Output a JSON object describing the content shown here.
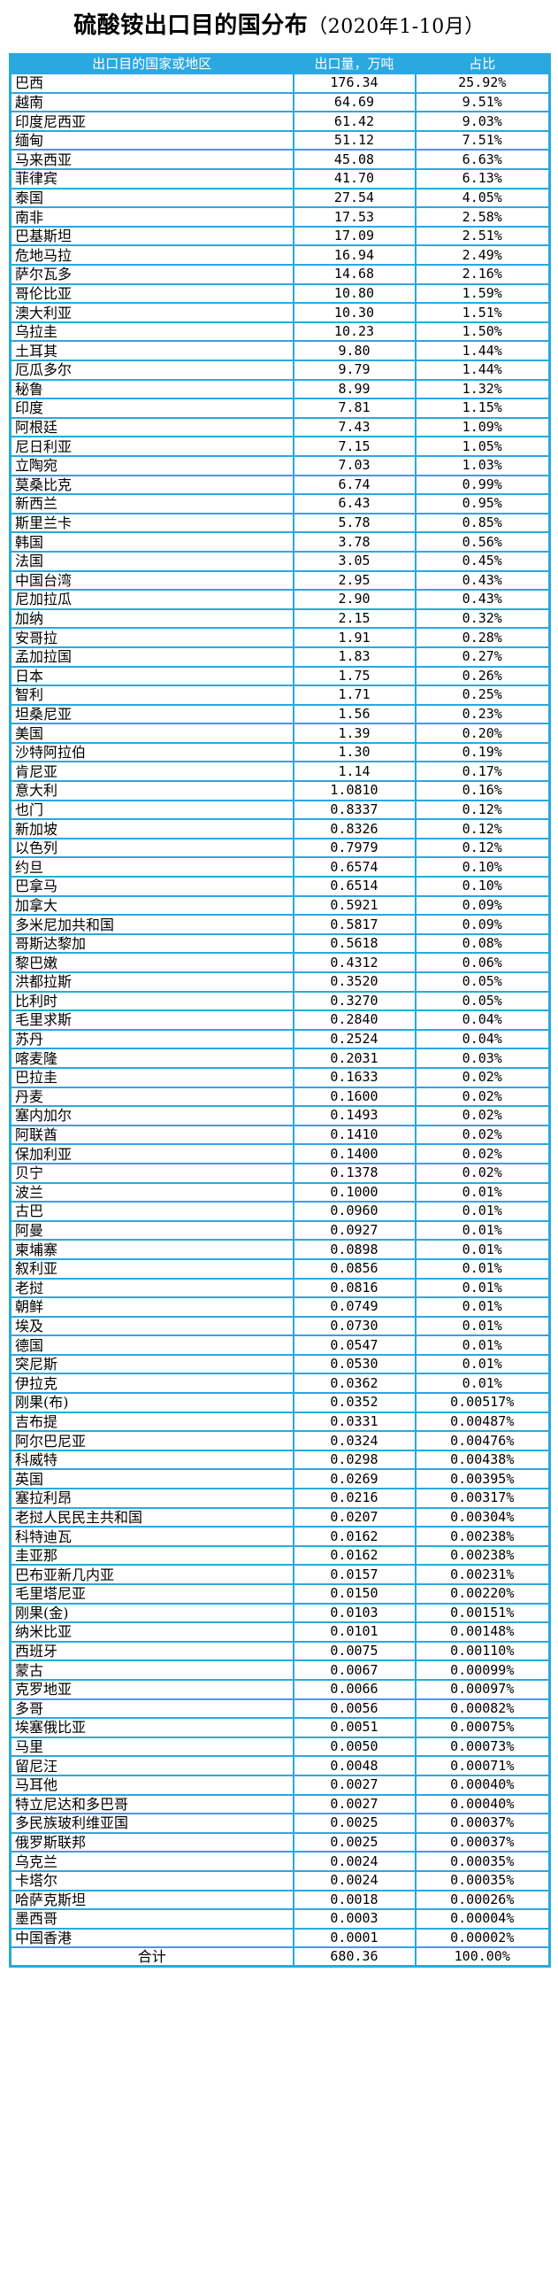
{
  "title": {
    "main": "硫酸铵出口目的国分布",
    "period": "（2020年1-10月）"
  },
  "columns": [
    "出口目的国家或地区",
    "出口量，万吨",
    "占比"
  ],
  "rows": [
    [
      "巴西",
      "176.34",
      "25.92%"
    ],
    [
      "越南",
      "64.69",
      "9.51%"
    ],
    [
      "印度尼西亚",
      "61.42",
      "9.03%"
    ],
    [
      "缅甸",
      "51.12",
      "7.51%"
    ],
    [
      "马来西亚",
      "45.08",
      "6.63%"
    ],
    [
      "菲律宾",
      "41.70",
      "6.13%"
    ],
    [
      "泰国",
      "27.54",
      "4.05%"
    ],
    [
      "南非",
      "17.53",
      "2.58%"
    ],
    [
      "巴基斯坦",
      "17.09",
      "2.51%"
    ],
    [
      "危地马拉",
      "16.94",
      "2.49%"
    ],
    [
      "萨尔瓦多",
      "14.68",
      "2.16%"
    ],
    [
      "哥伦比亚",
      "10.80",
      "1.59%"
    ],
    [
      "澳大利亚",
      "10.30",
      "1.51%"
    ],
    [
      "乌拉圭",
      "10.23",
      "1.50%"
    ],
    [
      "土耳其",
      "9.80",
      "1.44%"
    ],
    [
      "厄瓜多尔",
      "9.79",
      "1.44%"
    ],
    [
      "秘鲁",
      "8.99",
      "1.32%"
    ],
    [
      "印度",
      "7.81",
      "1.15%"
    ],
    [
      "阿根廷",
      "7.43",
      "1.09%"
    ],
    [
      "尼日利亚",
      "7.15",
      "1.05%"
    ],
    [
      "立陶宛",
      "7.03",
      "1.03%"
    ],
    [
      "莫桑比克",
      "6.74",
      "0.99%"
    ],
    [
      "新西兰",
      "6.43",
      "0.95%"
    ],
    [
      "斯里兰卡",
      "5.78",
      "0.85%"
    ],
    [
      "韩国",
      "3.78",
      "0.56%"
    ],
    [
      "法国",
      "3.05",
      "0.45%"
    ],
    [
      "中国台湾",
      "2.95",
      "0.43%"
    ],
    [
      "尼加拉瓜",
      "2.90",
      "0.43%"
    ],
    [
      "加纳",
      "2.15",
      "0.32%"
    ],
    [
      "安哥拉",
      "1.91",
      "0.28%"
    ],
    [
      "孟加拉国",
      "1.83",
      "0.27%"
    ],
    [
      "日本",
      "1.75",
      "0.26%"
    ],
    [
      "智利",
      "1.71",
      "0.25%"
    ],
    [
      "坦桑尼亚",
      "1.56",
      "0.23%"
    ],
    [
      "美国",
      "1.39",
      "0.20%"
    ],
    [
      "沙特阿拉伯",
      "1.30",
      "0.19%"
    ],
    [
      "肯尼亚",
      "1.14",
      "0.17%"
    ],
    [
      "意大利",
      "1.0810",
      "0.16%"
    ],
    [
      "也门",
      "0.8337",
      "0.12%"
    ],
    [
      "新加坡",
      "0.8326",
      "0.12%"
    ],
    [
      "以色列",
      "0.7979",
      "0.12%"
    ],
    [
      "约旦",
      "0.6574",
      "0.10%"
    ],
    [
      "巴拿马",
      "0.6514",
      "0.10%"
    ],
    [
      "加拿大",
      "0.5921",
      "0.09%"
    ],
    [
      "多米尼加共和国",
      "0.5817",
      "0.09%"
    ],
    [
      "哥斯达黎加",
      "0.5618",
      "0.08%"
    ],
    [
      "黎巴嫩",
      "0.4312",
      "0.06%"
    ],
    [
      "洪都拉斯",
      "0.3520",
      "0.05%"
    ],
    [
      "比利时",
      "0.3270",
      "0.05%"
    ],
    [
      "毛里求斯",
      "0.2840",
      "0.04%"
    ],
    [
      "苏丹",
      "0.2524",
      "0.04%"
    ],
    [
      "喀麦隆",
      "0.2031",
      "0.03%"
    ],
    [
      "巴拉圭",
      "0.1633",
      "0.02%"
    ],
    [
      "丹麦",
      "0.1600",
      "0.02%"
    ],
    [
      "塞内加尔",
      "0.1493",
      "0.02%"
    ],
    [
      "阿联酋",
      "0.1410",
      "0.02%"
    ],
    [
      "保加利亚",
      "0.1400",
      "0.02%"
    ],
    [
      "贝宁",
      "0.1378",
      "0.02%"
    ],
    [
      "波兰",
      "0.1000",
      "0.01%"
    ],
    [
      "古巴",
      "0.0960",
      "0.01%"
    ],
    [
      "阿曼",
      "0.0927",
      "0.01%"
    ],
    [
      "柬埔寨",
      "0.0898",
      "0.01%"
    ],
    [
      "叙利亚",
      "0.0856",
      "0.01%"
    ],
    [
      "老挝",
      "0.0816",
      "0.01%"
    ],
    [
      "朝鲜",
      "0.0749",
      "0.01%"
    ],
    [
      "埃及",
      "0.0730",
      "0.01%"
    ],
    [
      "德国",
      "0.0547",
      "0.01%"
    ],
    [
      "突尼斯",
      "0.0530",
      "0.01%"
    ],
    [
      "伊拉克",
      "0.0362",
      "0.01%"
    ],
    [
      "刚果(布)",
      "0.0352",
      "0.00517%"
    ],
    [
      "吉布提",
      "0.0331",
      "0.00487%"
    ],
    [
      "阿尔巴尼亚",
      "0.0324",
      "0.00476%"
    ],
    [
      "科威特",
      "0.0298",
      "0.00438%"
    ],
    [
      "英国",
      "0.0269",
      "0.00395%"
    ],
    [
      "塞拉利昂",
      "0.0216",
      "0.00317%"
    ],
    [
      "老挝人民民主共和国",
      "0.0207",
      "0.00304%"
    ],
    [
      "科特迪瓦",
      "0.0162",
      "0.00238%"
    ],
    [
      "圭亚那",
      "0.0162",
      "0.00238%"
    ],
    [
      "巴布亚新几内亚",
      "0.0157",
      "0.00231%"
    ],
    [
      "毛里塔尼亚",
      "0.0150",
      "0.00220%"
    ],
    [
      "刚果(金)",
      "0.0103",
      "0.00151%"
    ],
    [
      "纳米比亚",
      "0.0101",
      "0.00148%"
    ],
    [
      "西班牙",
      "0.0075",
      "0.00110%"
    ],
    [
      "蒙古",
      "0.0067",
      "0.00099%"
    ],
    [
      "克罗地亚",
      "0.0066",
      "0.00097%"
    ],
    [
      "多哥",
      "0.0056",
      "0.00082%"
    ],
    [
      "埃塞俄比亚",
      "0.0051",
      "0.00075%"
    ],
    [
      "马里",
      "0.0050",
      "0.00073%"
    ],
    [
      "留尼汪",
      "0.0048",
      "0.00071%"
    ],
    [
      "马耳他",
      "0.0027",
      "0.00040%"
    ],
    [
      "特立尼达和多巴哥",
      "0.0027",
      "0.00040%"
    ],
    [
      "多民族玻利维亚国",
      "0.0025",
      "0.00037%"
    ],
    [
      "俄罗斯联邦",
      "0.0025",
      "0.00037%"
    ],
    [
      "乌克兰",
      "0.0024",
      "0.00035%"
    ],
    [
      "卡塔尔",
      "0.0024",
      "0.00035%"
    ],
    [
      "哈萨克斯坦",
      "0.0018",
      "0.00026%"
    ],
    [
      "墨西哥",
      "0.0003",
      "0.00004%"
    ],
    [
      "中国香港",
      "0.0001",
      "0.00002%"
    ]
  ],
  "total": [
    "合计",
    "680.36",
    "100.00%"
  ],
  "colors": {
    "header_bg": "#2aa8e0",
    "grid_line": "#2aa8e0"
  }
}
